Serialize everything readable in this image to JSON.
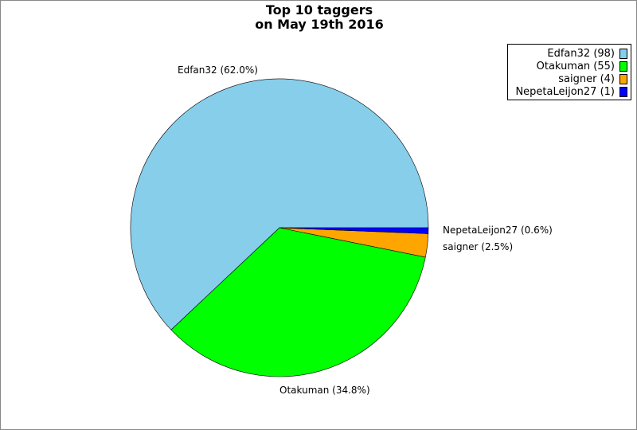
{
  "chart_data": {
    "type": "pie",
    "title": [
      "Top 10 taggers",
      "on May 19th 2016"
    ],
    "start_angle_deg": 0,
    "direction": "counterclockwise",
    "legend_position": "top-right",
    "slices": [
      {
        "name": "Edfan32",
        "value": 98,
        "percent": "62.0%",
        "label": "Edfan32 (62.0%)",
        "legend": "Edfan32 (98)",
        "color": "#87ceeb"
      },
      {
        "name": "Otakuman",
        "value": 55,
        "percent": "34.8%",
        "label": "Otakuman (34.8%)",
        "legend": "Otakuman (55)",
        "color": "#00ff00"
      },
      {
        "name": "saigner",
        "value": 4,
        "percent": "2.5%",
        "label": "saigner (2.5%)",
        "legend": "saigner (4)",
        "color": "#ffa500"
      },
      {
        "name": "NepetaLeijon27",
        "value": 1,
        "percent": "0.6%",
        "label": "NepetaLeijon27 (0.6%)",
        "legend": "NepetaLeijon27 (1)",
        "color": "#0000ff"
      }
    ]
  }
}
